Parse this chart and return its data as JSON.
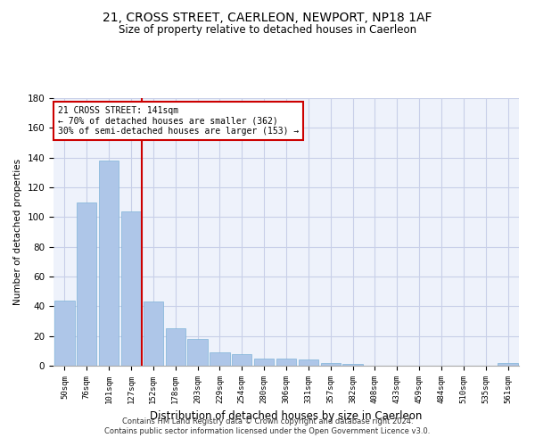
{
  "title1": "21, CROSS STREET, CAERLEON, NEWPORT, NP18 1AF",
  "title2": "Size of property relative to detached houses in Caerleon",
  "xlabel": "Distribution of detached houses by size in Caerleon",
  "ylabel": "Number of detached properties",
  "bar_values": [
    44,
    110,
    138,
    104,
    43,
    25,
    18,
    9,
    8,
    5,
    5,
    4,
    2,
    1,
    0,
    0,
    0,
    0,
    0,
    0,
    2
  ],
  "bar_color": "#aec6e8",
  "bar_edge_color": "#7fb3d8",
  "bg_color": "#eef2fb",
  "grid_color": "#c8cfe8",
  "vline_x": 3.5,
  "vline_color": "#cc0000",
  "annotation_text": "21 CROSS STREET: 141sqm\n← 70% of detached houses are smaller (362)\n30% of semi-detached houses are larger (153) →",
  "annotation_box_color": "#ffffff",
  "annotation_box_edge": "#cc0000",
  "ylim": [
    0,
    180
  ],
  "yticks": [
    0,
    20,
    40,
    60,
    80,
    100,
    120,
    140,
    160,
    180
  ],
  "footer": "Contains HM Land Registry data © Crown copyright and database right 2024.\nContains public sector information licensed under the Open Government Licence v3.0.",
  "all_labels": [
    "50sqm",
    "76sqm",
    "101sqm",
    "127sqm",
    "152sqm",
    "178sqm",
    "203sqm",
    "229sqm",
    "254sqm",
    "280sqm",
    "306sqm",
    "331sqm",
    "357sqm",
    "382sqm",
    "408sqm",
    "433sqm",
    "459sqm",
    "484sqm",
    "510sqm",
    "535sqm",
    "561sqm"
  ]
}
